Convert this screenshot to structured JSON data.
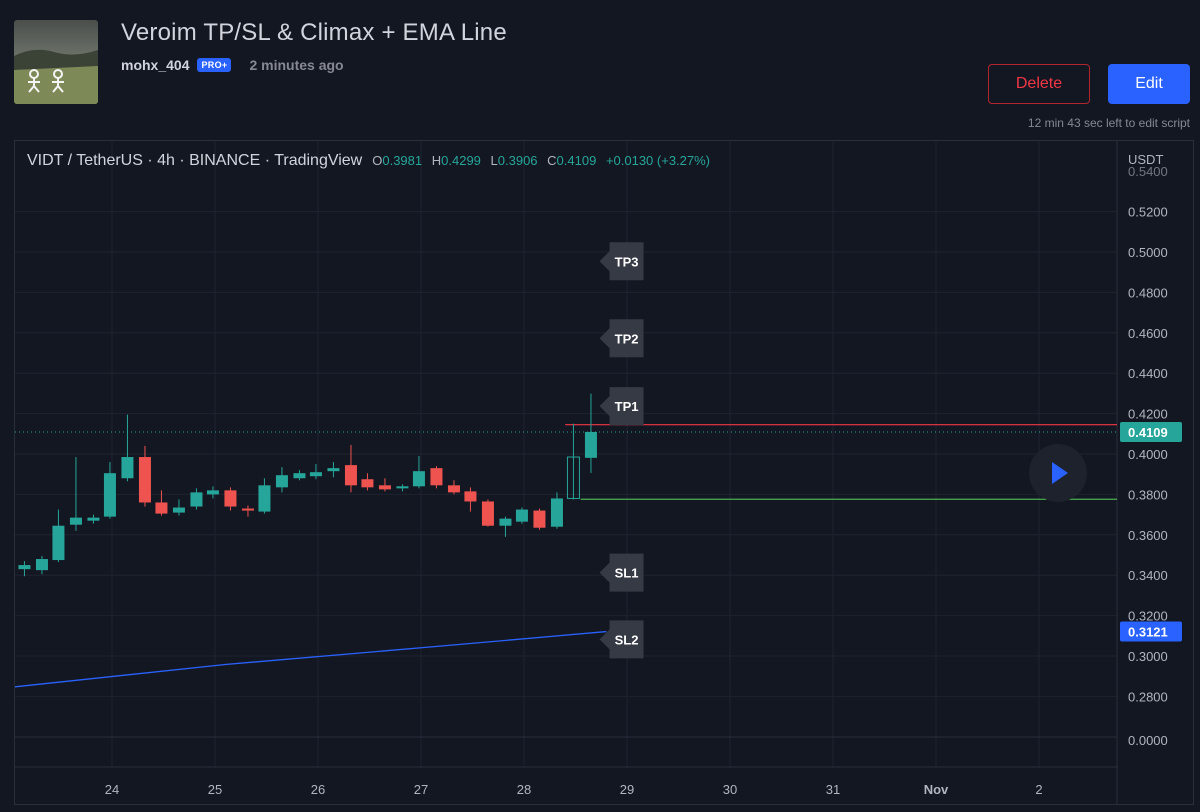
{
  "header": {
    "title": "Veroim TP/SL & Climax + EMA Line",
    "username": "mohx_404",
    "badge": "PRO+",
    "time_ago": "2 minutes ago",
    "delete_label": "Delete",
    "edit_label": "Edit",
    "edit_timer": "12 min 43 sec left to edit script"
  },
  "legend": {
    "symbol": "VIDT / TetherUS · 4h · BINANCE · TradingView",
    "o_key": "O",
    "o": "0.3981",
    "h_key": "H",
    "h": "0.4299",
    "l_key": "L",
    "l": "0.3906",
    "c_key": "C",
    "c": "0.4109",
    "change": "+0.0130 (+3.27%)"
  },
  "chart_data": {
    "type": "candlestick",
    "currency": "USDT",
    "y_ticks": [
      "0.5200",
      "0.5000",
      "0.4800",
      "0.4600",
      "0.4400",
      "0.4200",
      "0.4000",
      "0.3800",
      "0.3600",
      "0.3400",
      "0.3200",
      "0.3000",
      "0.2800"
    ],
    "y_tick_values": [
      0.52,
      0.5,
      0.48,
      0.46,
      0.44,
      0.42,
      0.4,
      0.38,
      0.36,
      0.34,
      0.32,
      0.3,
      0.28
    ],
    "top_partial_tick": "0.5400",
    "bottom_tick": "0.0000",
    "ylim": [
      0.2635,
      0.5455
    ],
    "x_ticks": [
      "24",
      "25",
      "26",
      "27",
      "28",
      "29",
      "30",
      "31",
      "Nov",
      "2"
    ],
    "x_tick_values": [
      23.9,
      24.9,
      25.9,
      26.9,
      27.9,
      28.9,
      29.9,
      30.9,
      31.9,
      32.9
    ],
    "xlim": [
      22.95,
      33.64
    ],
    "last_price_label": "0.4109",
    "last_price": 0.4109,
    "ema_label": "0.3121",
    "ema_value": 0.3121,
    "ema_line": [
      [
        22.95,
        0.2847
      ],
      [
        25.0,
        0.2958
      ],
      [
        27.0,
        0.3045
      ],
      [
        28.7,
        0.3121
      ]
    ],
    "tp_line": {
      "value": 0.4145,
      "x_start": 28.3
    },
    "sl_line": {
      "value": 0.3776,
      "x_start": 28.45
    },
    "tags": [
      {
        "label": "TP3",
        "value": 0.4954,
        "x": 28.75
      },
      {
        "label": "TP2",
        "value": 0.4573,
        "x": 28.75
      },
      {
        "label": "TP1",
        "value": 0.4237,
        "x": 28.75
      },
      {
        "label": "SL1",
        "value": 0.3413,
        "x": 28.75
      },
      {
        "label": "SL2",
        "value": 0.3082,
        "x": 28.75
      }
    ],
    "candles": [
      {
        "x": 23.05,
        "o": 0.343,
        "h": 0.347,
        "l": 0.3395,
        "c": 0.345
      },
      {
        "x": 23.22,
        "o": 0.3425,
        "h": 0.3495,
        "l": 0.3405,
        "c": 0.348
      },
      {
        "x": 23.38,
        "o": 0.3475,
        "h": 0.3725,
        "l": 0.3465,
        "c": 0.3645
      },
      {
        "x": 23.55,
        "o": 0.365,
        "h": 0.3985,
        "l": 0.362,
        "c": 0.3685
      },
      {
        "x": 23.72,
        "o": 0.367,
        "h": 0.37,
        "l": 0.3655,
        "c": 0.3685
      },
      {
        "x": 23.88,
        "o": 0.369,
        "h": 0.396,
        "l": 0.368,
        "c": 0.3905
      },
      {
        "x": 24.05,
        "o": 0.388,
        "h": 0.4195,
        "l": 0.3865,
        "c": 0.3985
      },
      {
        "x": 24.22,
        "o": 0.3985,
        "h": 0.404,
        "l": 0.374,
        "c": 0.376
      },
      {
        "x": 24.38,
        "o": 0.376,
        "h": 0.382,
        "l": 0.3695,
        "c": 0.3705
      },
      {
        "x": 24.55,
        "o": 0.371,
        "h": 0.3775,
        "l": 0.3695,
        "c": 0.3735
      },
      {
        "x": 24.72,
        "o": 0.374,
        "h": 0.383,
        "l": 0.3725,
        "c": 0.381
      },
      {
        "x": 24.88,
        "o": 0.38,
        "h": 0.384,
        "l": 0.378,
        "c": 0.382
      },
      {
        "x": 25.05,
        "o": 0.382,
        "h": 0.3835,
        "l": 0.372,
        "c": 0.374
      },
      {
        "x": 25.22,
        "o": 0.373,
        "h": 0.3745,
        "l": 0.369,
        "c": 0.372
      },
      {
        "x": 25.38,
        "o": 0.3715,
        "h": 0.388,
        "l": 0.3705,
        "c": 0.3845
      },
      {
        "x": 25.55,
        "o": 0.3835,
        "h": 0.3935,
        "l": 0.381,
        "c": 0.3895
      },
      {
        "x": 25.72,
        "o": 0.388,
        "h": 0.392,
        "l": 0.387,
        "c": 0.3905
      },
      {
        "x": 25.88,
        "o": 0.389,
        "h": 0.395,
        "l": 0.3875,
        "c": 0.391
      },
      {
        "x": 26.05,
        "o": 0.3915,
        "h": 0.396,
        "l": 0.3885,
        "c": 0.393
      },
      {
        "x": 26.22,
        "o": 0.3945,
        "h": 0.4045,
        "l": 0.381,
        "c": 0.3845
      },
      {
        "x": 26.38,
        "o": 0.3875,
        "h": 0.3905,
        "l": 0.382,
        "c": 0.3835
      },
      {
        "x": 26.55,
        "o": 0.3845,
        "h": 0.388,
        "l": 0.3815,
        "c": 0.3825
      },
      {
        "x": 26.72,
        "o": 0.383,
        "h": 0.385,
        "l": 0.3815,
        "c": 0.384
      },
      {
        "x": 26.88,
        "o": 0.384,
        "h": 0.399,
        "l": 0.383,
        "c": 0.3915
      },
      {
        "x": 27.05,
        "o": 0.393,
        "h": 0.394,
        "l": 0.383,
        "c": 0.3845
      },
      {
        "x": 27.22,
        "o": 0.3845,
        "h": 0.387,
        "l": 0.38,
        "c": 0.381
      },
      {
        "x": 27.38,
        "o": 0.3815,
        "h": 0.3835,
        "l": 0.3715,
        "c": 0.3765
      },
      {
        "x": 27.55,
        "o": 0.3765,
        "h": 0.3775,
        "l": 0.364,
        "c": 0.3645
      },
      {
        "x": 27.72,
        "o": 0.3645,
        "h": 0.369,
        "l": 0.359,
        "c": 0.368
      },
      {
        "x": 27.88,
        "o": 0.3665,
        "h": 0.3735,
        "l": 0.3655,
        "c": 0.3725
      },
      {
        "x": 28.05,
        "o": 0.372,
        "h": 0.373,
        "l": 0.3625,
        "c": 0.3635
      },
      {
        "x": 28.22,
        "o": 0.364,
        "h": 0.381,
        "l": 0.363,
        "c": 0.378
      },
      {
        "x": 28.38,
        "o": 0.378,
        "h": 0.415,
        "l": 0.3775,
        "c": 0.3985
      },
      {
        "x": 28.55,
        "o": 0.3981,
        "h": 0.4299,
        "l": 0.3906,
        "c": 0.4109
      }
    ]
  },
  "colors": {
    "up": "#26a69a",
    "down": "#ef5350",
    "ema": "#2962ff",
    "tp_line": "#f23645",
    "sl_line": "#4caf50",
    "tag_bg": "#363a45",
    "grid": "#1f2330"
  },
  "icons": {
    "replay": "play-icon"
  }
}
